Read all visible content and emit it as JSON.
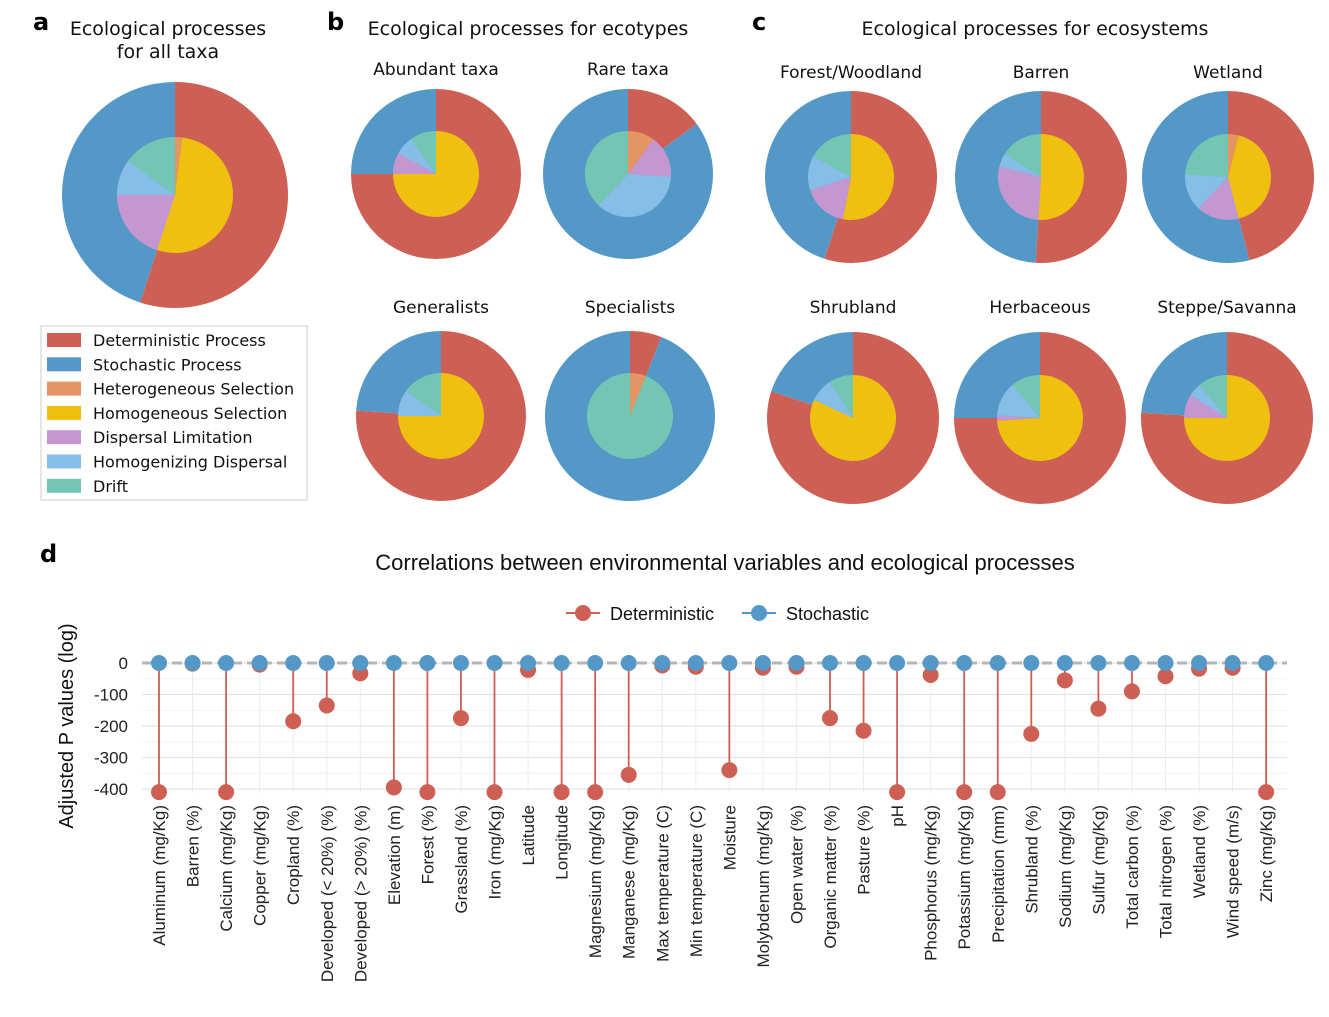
{
  "panels": {
    "a": {
      "letter": "a",
      "title_lines": [
        "Ecological processes",
        "for all taxa"
      ]
    },
    "b": {
      "letter": "b",
      "title": "Ecological processes for ecotypes"
    },
    "c": {
      "letter": "c",
      "title": "Ecological processes for ecosystems"
    },
    "d": {
      "letter": "d",
      "title": "Correlations between environmental variables and ecological processes"
    }
  },
  "colors": {
    "deterministic": "#CD5F54",
    "stochastic": "#5498C8",
    "heterogeneous": "#E59463",
    "homogeneous": "#F0C010",
    "dispersal": "#C597D0",
    "homogenizing": "#86BEE8",
    "drift": "#74C6B4"
  },
  "legend": [
    {
      "key": "deterministic",
      "label": "Deterministic Process"
    },
    {
      "key": "stochastic",
      "label": "Stochastic Process"
    },
    {
      "key": "heterogeneous",
      "label": "Heterogeneous Selection"
    },
    {
      "key": "homogeneous",
      "label": "Homogeneous Selection"
    },
    {
      "key": "dispersal",
      "label": "Dispersal Limitation"
    },
    {
      "key": "homogenizing",
      "label": "Homogenizing Dispersal"
    },
    {
      "key": "drift",
      "label": "Drift"
    }
  ],
  "chart_data": [
    {
      "type": "pie",
      "panel": "a",
      "title": "Ecological processes for all taxa",
      "outer": {
        "deterministic": 0.55,
        "stochastic": 0.45
      },
      "inner": {
        "heterogeneous": 0.02,
        "homogeneous": 0.53,
        "dispersal": 0.2,
        "homogenizing": 0.1,
        "drift": 0.15
      }
    },
    {
      "type": "pie",
      "panel": "b",
      "title": "Abundant taxa",
      "outer": {
        "deterministic": 0.75,
        "stochastic": 0.25
      },
      "inner": {
        "heterogeneous": 0.0,
        "homogeneous": 0.75,
        "dispersal": 0.08,
        "homogenizing": 0.07,
        "drift": 0.1
      }
    },
    {
      "type": "pie",
      "panel": "b",
      "title": "Rare taxa",
      "outer": {
        "deterministic": 0.15,
        "stochastic": 0.85
      },
      "inner": {
        "heterogeneous": 0.1,
        "homogeneous": 0.0,
        "dispersal": 0.16,
        "homogenizing": 0.36,
        "drift": 0.38
      }
    },
    {
      "type": "pie",
      "panel": "b",
      "title": "Generalists",
      "outer": {
        "deterministic": 0.76,
        "stochastic": 0.24
      },
      "inner": {
        "heterogeneous": 0.0,
        "homogeneous": 0.75,
        "dispersal": 0.0,
        "homogenizing": 0.1,
        "drift": 0.15
      }
    },
    {
      "type": "pie",
      "panel": "b",
      "title": "Specialists",
      "outer": {
        "deterministic": 0.06,
        "stochastic": 0.94
      },
      "inner": {
        "heterogeneous": 0.06,
        "homogeneous": 0.0,
        "dispersal": 0.0,
        "homogenizing": 0.0,
        "drift": 0.94
      }
    },
    {
      "type": "pie",
      "panel": "c",
      "title": "Forest/Woodland",
      "outer": {
        "deterministic": 0.55,
        "stochastic": 0.45
      },
      "inner": {
        "heterogeneous": 0.0,
        "homogeneous": 0.53,
        "dispersal": 0.17,
        "homogenizing": 0.13,
        "drift": 0.17
      }
    },
    {
      "type": "pie",
      "panel": "c",
      "title": "Barren",
      "outer": {
        "deterministic": 0.51,
        "stochastic": 0.49
      },
      "inner": {
        "heterogeneous": 0.0,
        "homogeneous": 0.51,
        "dispersal": 0.28,
        "homogenizing": 0.05,
        "drift": 0.16
      }
    },
    {
      "type": "pie",
      "panel": "c",
      "title": "Wetland",
      "outer": {
        "deterministic": 0.46,
        "stochastic": 0.54
      },
      "inner": {
        "heterogeneous": 0.04,
        "homogeneous": 0.42,
        "dispersal": 0.16,
        "homogenizing": 0.14,
        "drift": 0.24
      }
    },
    {
      "type": "pie",
      "panel": "c",
      "title": "Shrubland",
      "outer": {
        "deterministic": 0.8,
        "stochastic": 0.2
      },
      "inner": {
        "heterogeneous": 0.0,
        "homogeneous": 0.82,
        "dispersal": 0.0,
        "homogenizing": 0.09,
        "drift": 0.09
      }
    },
    {
      "type": "pie",
      "panel": "c",
      "title": "Herbaceous",
      "outer": {
        "deterministic": 0.75,
        "stochastic": 0.25
      },
      "inner": {
        "heterogeneous": 0.0,
        "homogeneous": 0.74,
        "dispersal": 0.02,
        "homogenizing": 0.13,
        "drift": 0.11
      }
    },
    {
      "type": "pie",
      "panel": "c",
      "title": "Steppe/Savanna",
      "outer": {
        "deterministic": 0.76,
        "stochastic": 0.24
      },
      "inner": {
        "heterogeneous": 0.0,
        "homogeneous": 0.75,
        "dispersal": 0.09,
        "homogenizing": 0.05,
        "drift": 0.11
      }
    },
    {
      "type": "scatter",
      "subtype": "lollipop",
      "panel": "d",
      "title": "Correlations between environmental variables and ecological processes",
      "ylabel": "Adjusted P values (log)",
      "ylim": [
        -400,
        0
      ],
      "yticks": [
        0,
        -100,
        -200,
        -300,
        -400
      ],
      "series_names": [
        "Deterministic",
        "Stochastic"
      ],
      "categories": [
        "Aluminum (mg/Kg)",
        "Barren (%)",
        "Calcium (mg/Kg)",
        "Copper (mg/Kg)",
        "Cropland (%)",
        "Developed (< 20%) (%)",
        "Developed (> 20%) (%)",
        "Elevation (m)",
        "Forest (%)",
        "Grassland (%)",
        "Iron (mg/Kg)",
        "Latitude",
        "Longitude",
        "Magnesium (mg/Kg)",
        "Manganese (mg/Kg)",
        "Max temperature (C)",
        "Min temperature (C)",
        "Moisture",
        "Molybdenum (mg/Kg)",
        "Open water (%)",
        "Organic matter (%)",
        "Pasture (%)",
        "pH",
        "Phosphorus (mg/Kg)",
        "Potassium (mg/Kg)",
        "Precipitation (mm)",
        "Shrubland (%)",
        "Sodium (mg/Kg)",
        "Sulfur (mg/Kg)",
        "Total carbon (%)",
        "Total nitrogen (%)",
        "Wetland (%)",
        "Wind speed (m/s)",
        "Zinc (mg/Kg)"
      ],
      "deterministic": [
        -410,
        -2,
        -410,
        -5,
        -185,
        -135,
        -33,
        -395,
        -410,
        -175,
        -410,
        -22,
        -410,
        -410,
        -355,
        -8,
        -12,
        -340,
        -15,
        -12,
        -175,
        -215,
        -410,
        -38,
        -410,
        -410,
        -225,
        -55,
        -145,
        -90,
        -42,
        -18,
        -15,
        -410
      ],
      "stochastic": [
        0,
        0,
        0,
        0,
        0,
        0,
        0,
        0,
        0,
        0,
        0,
        0,
        0,
        0,
        0,
        0,
        0,
        0,
        0,
        0,
        0,
        0,
        0,
        0,
        0,
        0,
        0,
        0,
        0,
        0,
        0,
        0,
        0,
        0
      ]
    }
  ]
}
